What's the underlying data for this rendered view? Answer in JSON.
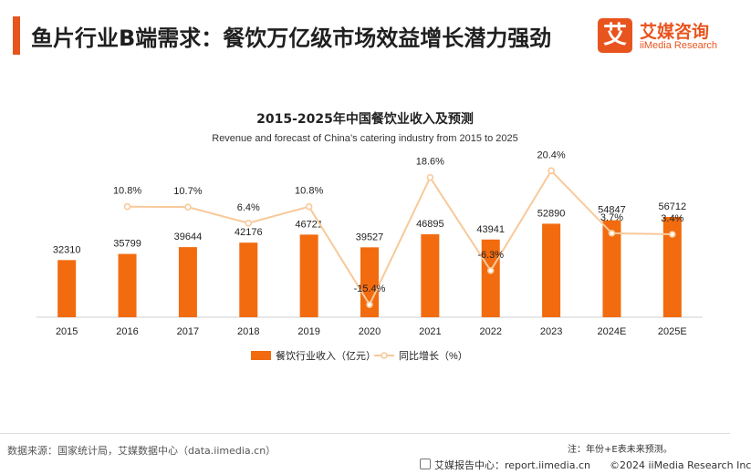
{
  "header": {
    "title": "鱼片行业B端需求：餐饮万亿级市场效益增长潜力强劲",
    "logo_mark": "艾",
    "logo_cn": "艾媒咨询",
    "logo_en": "iiMedia Research"
  },
  "chart_data": {
    "type": "bar",
    "title": "2015-2025年中国餐饮业收入及预测",
    "subtitle": "Revenue and forecast of China’s catering industry from 2015 to 2025",
    "categories": [
      "2015",
      "2016",
      "2017",
      "2018",
      "2019",
      "2020",
      "2021",
      "2022",
      "2023",
      "2024E",
      "2025E"
    ],
    "series": [
      {
        "name": "餐饮行业收入（亿元）",
        "type": "bar",
        "color": "#f26b0f",
        "values": [
          32310,
          35799,
          39644,
          42176,
          46721,
          39527,
          46895,
          43941,
          52890,
          54847,
          56712
        ],
        "labels": [
          "32310",
          "35799",
          "39644",
          "42176",
          "46721",
          "39527",
          "46895",
          "43941",
          "52890",
          "54847",
          "56712"
        ]
      },
      {
        "name": "同比增长（%）",
        "type": "line",
        "color": "#f8c99a",
        "values": [
          null,
          10.8,
          10.7,
          6.4,
          10.8,
          -15.4,
          18.6,
          -6.3,
          20.4,
          3.7,
          3.4
        ],
        "labels": [
          "",
          "10.8%",
          "10.7%",
          "6.4%",
          "10.8%",
          "-15.4%",
          "18.6%",
          "-6.3%",
          "20.4%",
          "3.7%",
          "3.4%"
        ]
      }
    ],
    "legend_position": "bottom",
    "grid": false
  },
  "footer": {
    "source": "数据来源：国家统计局，艾媒数据中心（data.iimedia.cn）",
    "note": "注：年份+E表未来预测。",
    "report_center": "艾媒报告中心：report.iimedia.cn",
    "copyright": "©2024  iiMedia Research  Inc"
  }
}
